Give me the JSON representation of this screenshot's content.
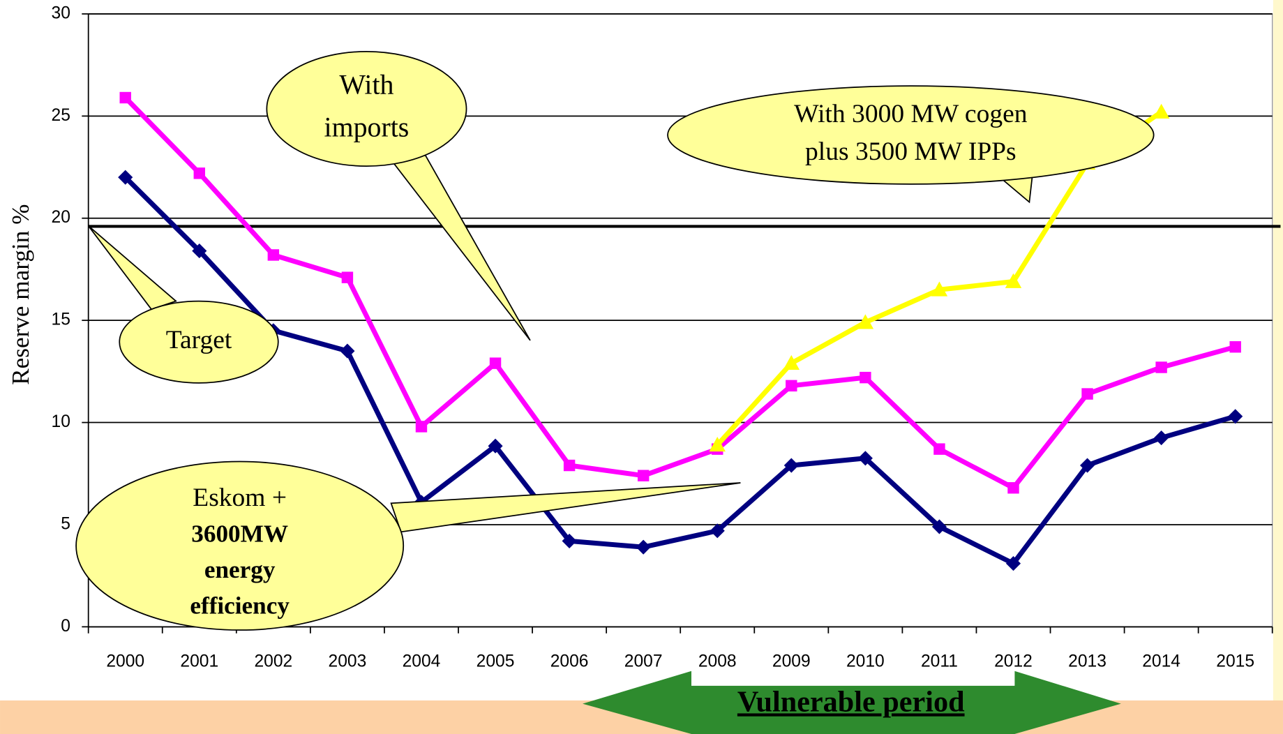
{
  "chart_data": {
    "type": "line",
    "y_label": "Reserve margin %",
    "categories": [
      "2000",
      "2001",
      "2002",
      "2003",
      "2004",
      "2005",
      "2006",
      "2007",
      "2008",
      "2009",
      "2010",
      "2011",
      "2012",
      "2013",
      "2014",
      "2015"
    ],
    "series": [
      {
        "color": "#000080",
        "marker": "diamond",
        "values": [
          22,
          18.4,
          14.5,
          13.5,
          6.1,
          8.85,
          4.2,
          3.9,
          4.7,
          7.9,
          8.25,
          4.9,
          3.1,
          7.9,
          9.25,
          10.3
        ]
      },
      {
        "color": "#ff00ff",
        "marker": "square",
        "values": [
          25.9,
          22.2,
          18.2,
          17.1,
          9.8,
          12.9,
          7.9,
          7.4,
          8.7,
          11.8,
          12.2,
          8.7,
          6.8,
          11.4,
          12.7,
          13.7
        ]
      },
      {
        "color": "#ffff00",
        "marker": "triangle",
        "values": [
          null,
          null,
          null,
          null,
          null,
          null,
          null,
          null,
          8.9,
          12.9,
          14.9,
          16.5,
          16.9,
          22.7,
          25.2,
          null
        ]
      }
    ],
    "target_line": 19.6,
    "ylim": [
      0,
      30
    ],
    "yticks": [
      0,
      5,
      10,
      15,
      20,
      25,
      30
    ],
    "grid": true,
    "annotations": [
      {
        "lines": [
          "With",
          "imports"
        ]
      },
      {
        "lines": [
          "Target"
        ]
      },
      {
        "lines": [
          "Eskom +",
          "3600MW",
          "energy",
          "efficiency"
        ]
      },
      {
        "lines": [
          "With 3000 MW cogen",
          "plus 3500 MW IPPs"
        ]
      }
    ],
    "period_label": "Vulnerable period"
  }
}
